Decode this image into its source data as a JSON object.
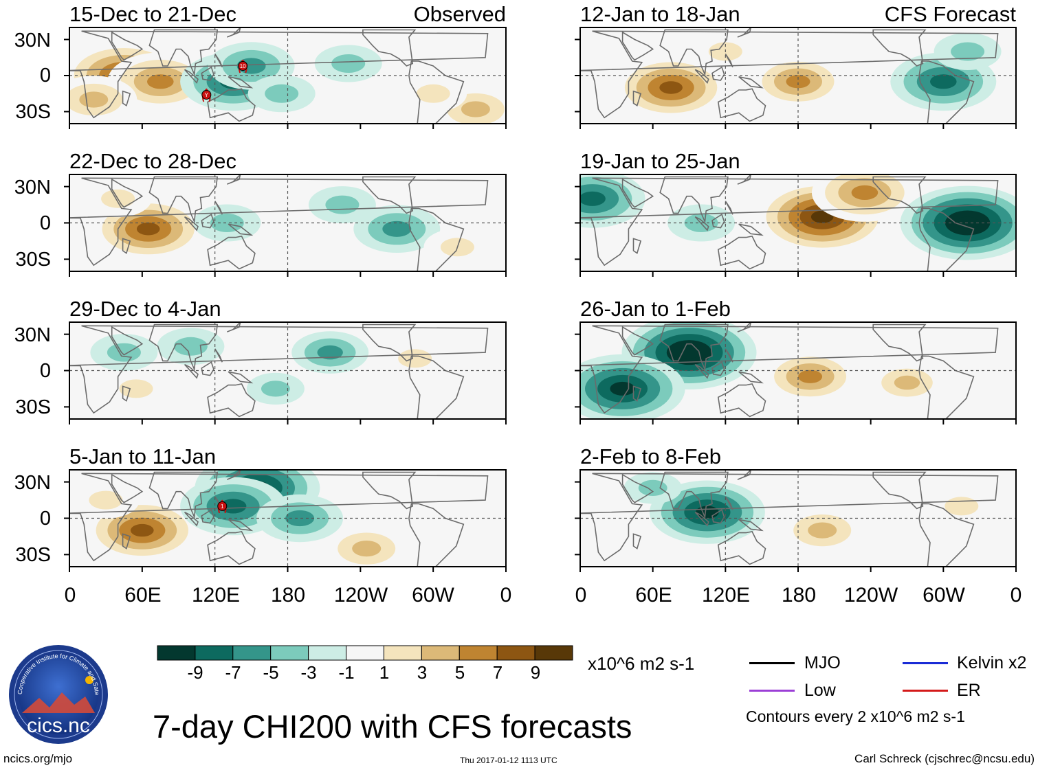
{
  "chart_data": {
    "type": "heatmap",
    "title": "7-day CHI200 with CFS forecasts",
    "variable": "CHI200",
    "units": "x10^6 m2 s-1",
    "contour_note": "Contours every 2 x10^6 m2 s-1",
    "x_ticks": [
      "0",
      "60E",
      "120E",
      "180",
      "120W",
      "60W",
      "0"
    ],
    "y_ticks": [
      "30N",
      "0",
      "30S"
    ],
    "colorbar": {
      "labels": [
        "-9",
        "-7",
        "-5",
        "-3",
        "-1",
        "1",
        "3",
        "5",
        "7",
        "9"
      ],
      "colors": [
        "#03382f",
        "#0d6a5f",
        "#34958a",
        "#7ccbbc",
        "#cdede5",
        "#f6f6f6",
        "#f4e4bd",
        "#dcb978",
        "#bf8431",
        "#8d5612",
        "#583808"
      ]
    },
    "panels": [
      {
        "title": "15-Dec to 21-Dec",
        "tag": "Observed",
        "storm_markers": [
          "10",
          "Y"
        ],
        "blobs": [
          {
            "lon": 45,
            "lat": 0,
            "v": 9
          },
          {
            "lon": 75,
            "lat": -5,
            "v": 7
          },
          {
            "lon": 20,
            "lat": -20,
            "v": 5
          },
          {
            "lon": 135,
            "lat": -5,
            "v": -7
          },
          {
            "lon": 150,
            "lat": 8,
            "v": -5
          },
          {
            "lon": 175,
            "lat": -15,
            "v": -3
          },
          {
            "lon": 230,
            "lat": 10,
            "v": -3
          },
          {
            "lon": 335,
            "lat": -28,
            "v": 5
          },
          {
            "lon": 300,
            "lat": -15,
            "v": 3
          }
        ]
      },
      {
        "title": "22-Dec to 28-Dec",
        "tag": "",
        "storm_markers": [],
        "blobs": [
          {
            "lon": 65,
            "lat": -5,
            "v": 8
          },
          {
            "lon": 40,
            "lat": 20,
            "v": 3
          },
          {
            "lon": 130,
            "lat": 0,
            "v": -3
          },
          {
            "lon": 270,
            "lat": -5,
            "v": -5
          },
          {
            "lon": 225,
            "lat": 15,
            "v": -3
          },
          {
            "lon": 320,
            "lat": -20,
            "v": 3
          }
        ]
      },
      {
        "title": "29-Dec to 4-Jan",
        "tag": "",
        "storm_markers": [],
        "blobs": [
          {
            "lon": 45,
            "lat": 15,
            "v": -3
          },
          {
            "lon": 100,
            "lat": 20,
            "v": -3
          },
          {
            "lon": 215,
            "lat": 15,
            "v": -4
          },
          {
            "lon": 55,
            "lat": -15,
            "v": 3
          },
          {
            "lon": 285,
            "lat": 10,
            "v": 3
          },
          {
            "lon": 170,
            "lat": -15,
            "v": -2
          }
        ]
      },
      {
        "title": "5-Jan to 11-Jan",
        "tag": "",
        "storm_markers": [
          "1"
        ],
        "blobs": [
          {
            "lon": 60,
            "lat": -10,
            "v": 8
          },
          {
            "lon": 155,
            "lat": 25,
            "v": -9
          },
          {
            "lon": 135,
            "lat": 10,
            "v": -7
          },
          {
            "lon": 190,
            "lat": 0,
            "v": -5
          },
          {
            "lon": 245,
            "lat": -25,
            "v": 5
          },
          {
            "lon": 30,
            "lat": 15,
            "v": 3
          }
        ]
      },
      {
        "title": "12-Jan to 18-Jan",
        "tag": "CFS Forecast",
        "storm_markers": [],
        "blobs": [
          {
            "lon": 75,
            "lat": -10,
            "v": 8
          },
          {
            "lon": 180,
            "lat": -5,
            "v": 6
          },
          {
            "lon": 300,
            "lat": -5,
            "v": -7
          },
          {
            "lon": 320,
            "lat": 20,
            "v": -3
          },
          {
            "lon": 120,
            "lat": 20,
            "v": 3
          }
        ]
      },
      {
        "title": "19-Jan to 25-Jan",
        "tag": "",
        "storm_markers": [],
        "blobs": [
          {
            "lon": 200,
            "lat": 5,
            "v": 10
          },
          {
            "lon": 235,
            "lat": 25,
            "v": 7
          },
          {
            "lon": 320,
            "lat": 0,
            "v": -10
          },
          {
            "lon": 10,
            "lat": 20,
            "v": -7
          },
          {
            "lon": 100,
            "lat": 0,
            "v": -3
          }
        ]
      },
      {
        "title": "26-Jan to 1-Feb",
        "tag": "",
        "storm_markers": [],
        "blobs": [
          {
            "lon": 90,
            "lat": 15,
            "v": -10
          },
          {
            "lon": 35,
            "lat": -15,
            "v": -9
          },
          {
            "lon": 190,
            "lat": -5,
            "v": 6
          },
          {
            "lon": 270,
            "lat": -10,
            "v": 4
          }
        ]
      },
      {
        "title": "2-Feb to 8-Feb",
        "tag": "",
        "storm_markers": [],
        "blobs": [
          {
            "lon": 105,
            "lat": 5,
            "v": -8
          },
          {
            "lon": 200,
            "lat": -10,
            "v": 5
          },
          {
            "lon": 315,
            "lat": 10,
            "v": 3
          },
          {
            "lon": 60,
            "lat": 25,
            "v": -2
          }
        ]
      }
    ]
  },
  "legend": {
    "units_label": "x10^6 m2 s-1",
    "items": [
      {
        "label": "MJO",
        "color": "#000000"
      },
      {
        "label": "Kelvin x2",
        "color": "#1a2bd6"
      },
      {
        "label": "Low",
        "color": "#9b3fd6"
      },
      {
        "label": "ER",
        "color": "#d41a1a"
      }
    ],
    "contours": "Contours every 2 x10^6 m2 s-1"
  },
  "main_title": "7-day CHI200 with CFS forecasts",
  "footer": {
    "left": "ncics.org/mjo",
    "center": "Thu 2017-01-12 1113 UTC",
    "right": "Carl Schreck (cjschrec@ncsu.edu)"
  },
  "logo": {
    "text": "cics.nc",
    "ring_text": "Cooperative Institute for Climate and Satellites"
  }
}
